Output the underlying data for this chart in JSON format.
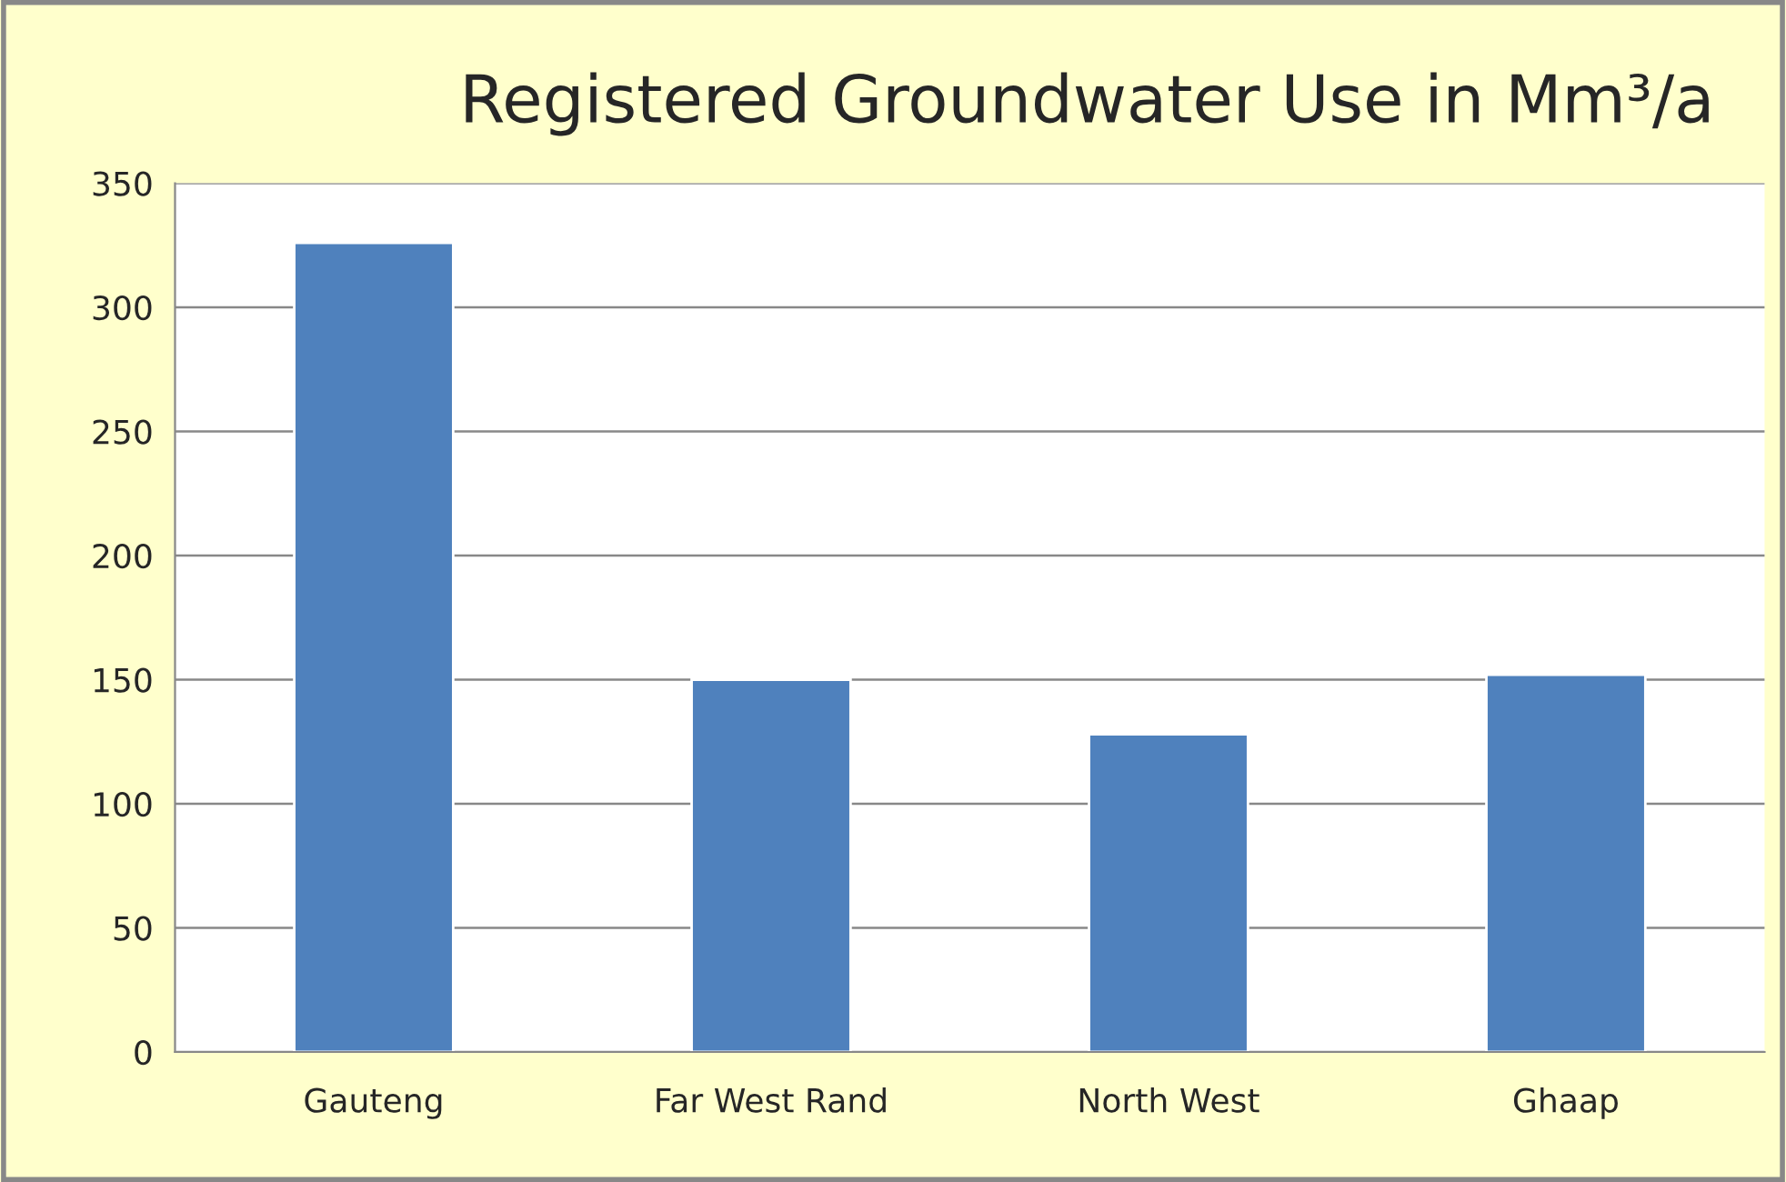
{
  "chart_data": {
    "type": "bar",
    "title": "Registered Groundwater Use in Mm³/a",
    "categories": [
      "Gauteng",
      "Far West Rand",
      "North West",
      "Ghaap"
    ],
    "values": [
      326,
      150,
      128,
      152
    ],
    "color": "#4f81bd",
    "ylim": [
      0,
      350
    ],
    "yticks": [
      0,
      50,
      100,
      150,
      200,
      250,
      300,
      350
    ],
    "grid": "y",
    "legend": false
  }
}
